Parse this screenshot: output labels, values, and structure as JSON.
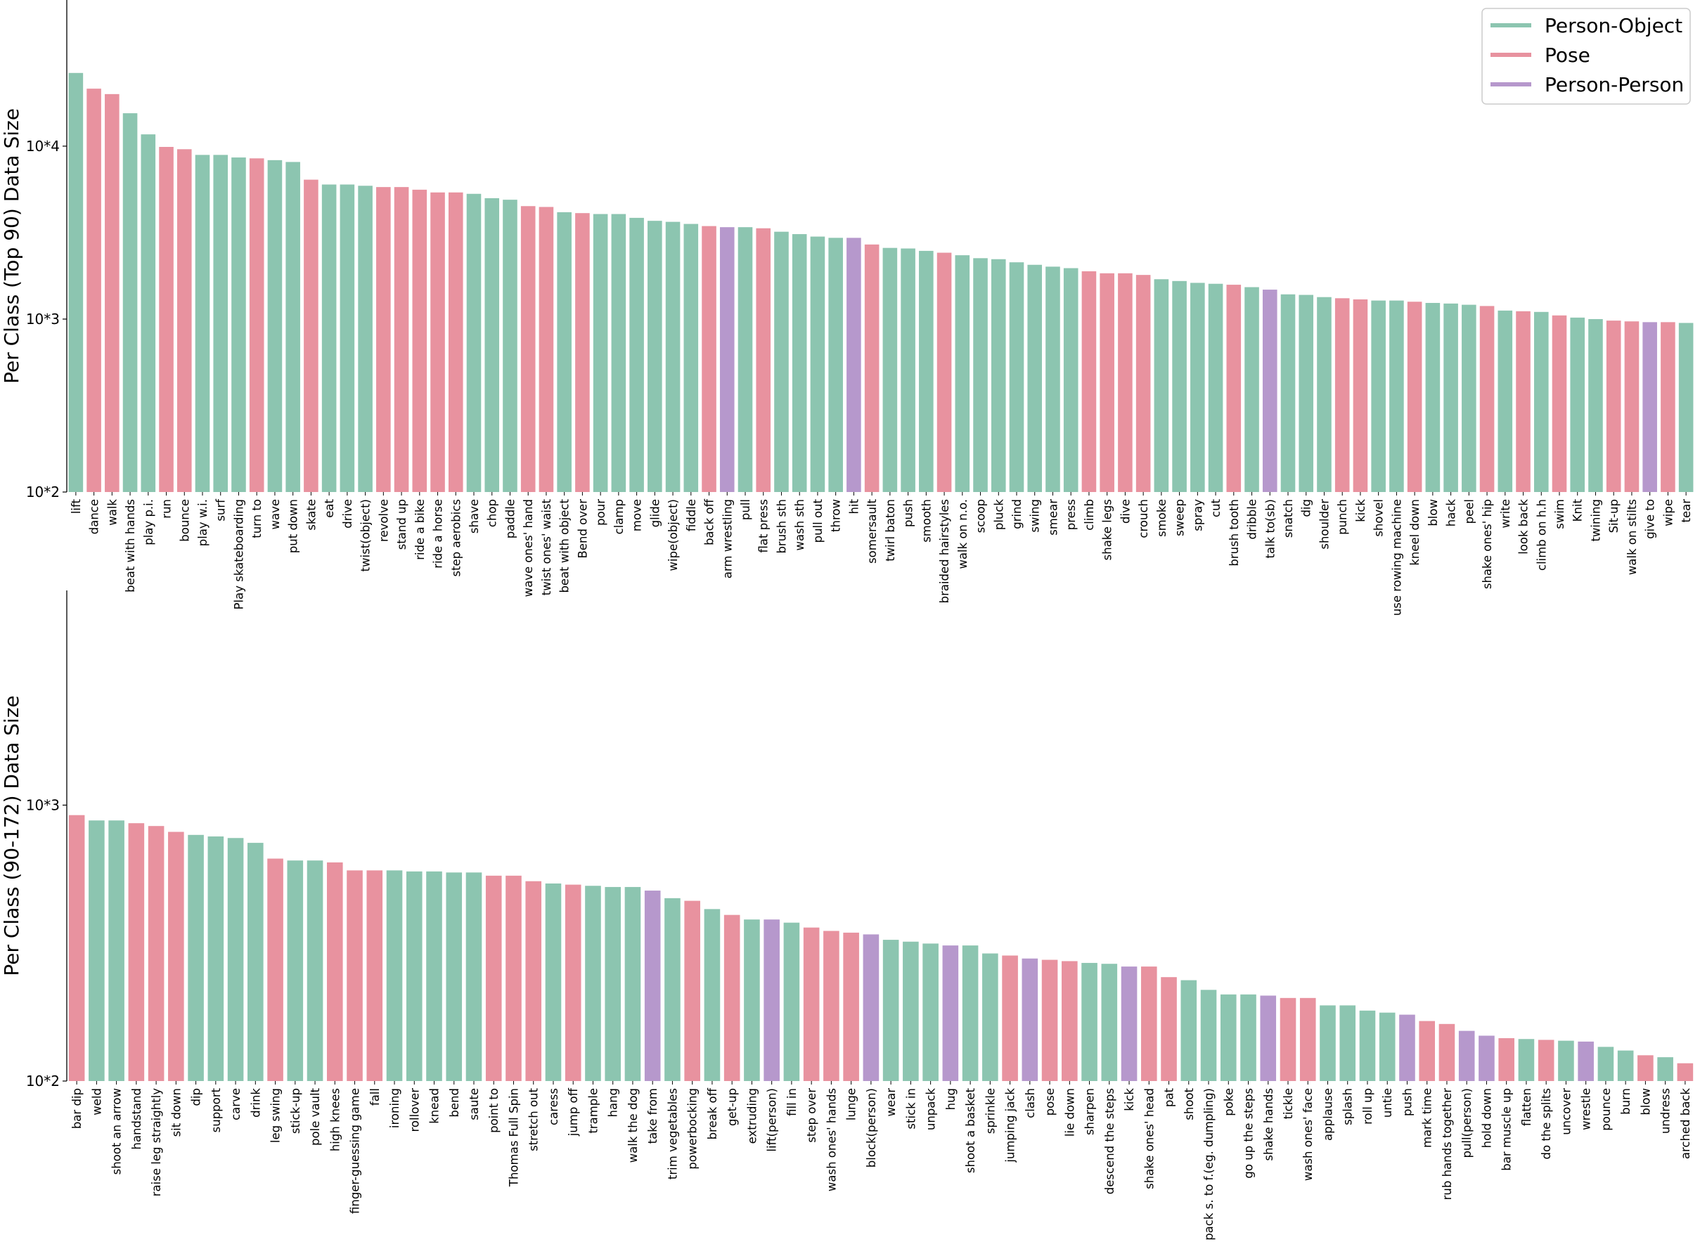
{
  "colors": {
    "Person-Object": "#8cc5b0",
    "Pose": "#e8929f",
    "Person-Person": "#b698cc"
  },
  "legend": {
    "entries": [
      "Person-Object",
      "Pose",
      "Person-Person"
    ],
    "placement": "top-right"
  },
  "chart_data": [
    {
      "type": "bar",
      "ylabel": "Per Class (Top 90) Data Size",
      "yscale": "log",
      "ylim": [
        100,
        70000
      ],
      "ytick_values": [
        100,
        1000,
        10000
      ],
      "ytick_labels": [
        "10*2",
        "10*3",
        "10*4"
      ],
      "categories": [
        "lift",
        "dance",
        "walk",
        "beat with hands",
        "play p.i.",
        "run",
        "bounce",
        "play w.i.",
        "surf",
        "Play skateboarding",
        "turn to",
        "wave",
        "put down",
        "skate",
        "eat",
        "drive",
        "twist(object)",
        "revolve",
        "stand up",
        "ride a bike",
        "ride a horse",
        "step aerobics",
        "shave",
        "chop",
        "paddle",
        "wave ones' hand",
        "twist ones' waist",
        "beat with object",
        "Bend over",
        "pour",
        "clamp",
        "move",
        "glide",
        "wipe(object)",
        "fiddle",
        "back off",
        "arm wrestling",
        "pull",
        "flat press",
        "brush sth",
        "wash sth",
        "pull out",
        "throw",
        "hit",
        "somersault",
        "twirl baton",
        "push",
        "smooth",
        "braided hairstyles",
        "walk on n.o.",
        "scoop",
        "pluck",
        "grind",
        "swing",
        "smear",
        "press",
        "climb",
        "shake legs",
        "dive",
        "crouch",
        "smoke",
        "sweep",
        "spray",
        "cut",
        "brush tooth",
        "dribble",
        "talk to(sb)",
        "snatch",
        "dig",
        "shoulder",
        "punch",
        "kick",
        "shovel",
        "use rowing machine",
        "kneel down",
        "blow",
        "hack",
        "peel",
        "shake ones' hip",
        "write",
        "look back",
        "climb on h.h",
        "swim",
        "Knit",
        "twining",
        "Sit-up",
        "walk on stilts",
        "give to",
        "wipe",
        "tear"
      ],
      "values": [
        26500,
        21500,
        20000,
        15500,
        11700,
        9900,
        9600,
        8900,
        8900,
        8600,
        8500,
        8300,
        8100,
        6400,
        6000,
        6000,
        5900,
        5800,
        5800,
        5600,
        5400,
        5400,
        5300,
        5000,
        4900,
        4500,
        4450,
        4150,
        4100,
        4050,
        4050,
        3850,
        3700,
        3650,
        3550,
        3450,
        3400,
        3400,
        3350,
        3200,
        3100,
        3000,
        2950,
        2950,
        2700,
        2580,
        2560,
        2480,
        2420,
        2340,
        2250,
        2220,
        2130,
        2060,
        2010,
        1970,
        1890,
        1840,
        1840,
        1800,
        1700,
        1660,
        1620,
        1600,
        1580,
        1530,
        1480,
        1390,
        1380,
        1340,
        1320,
        1300,
        1280,
        1280,
        1260,
        1240,
        1230,
        1210,
        1190,
        1120,
        1110,
        1100,
        1050,
        1020,
        1000,
        980,
        970,
        960,
        960,
        950
      ],
      "groups": [
        "Person-Object",
        "Pose",
        "Pose",
        "Person-Object",
        "Person-Object",
        "Pose",
        "Pose",
        "Person-Object",
        "Person-Object",
        "Person-Object",
        "Pose",
        "Person-Object",
        "Person-Object",
        "Pose",
        "Person-Object",
        "Person-Object",
        "Person-Object",
        "Pose",
        "Pose",
        "Pose",
        "Pose",
        "Pose",
        "Person-Object",
        "Person-Object",
        "Person-Object",
        "Pose",
        "Pose",
        "Person-Object",
        "Pose",
        "Person-Object",
        "Person-Object",
        "Person-Object",
        "Person-Object",
        "Person-Object",
        "Person-Object",
        "Pose",
        "Person-Person",
        "Person-Object",
        "Pose",
        "Person-Object",
        "Person-Object",
        "Person-Object",
        "Person-Object",
        "Person-Person",
        "Pose",
        "Person-Object",
        "Person-Object",
        "Person-Object",
        "Pose",
        "Person-Object",
        "Person-Object",
        "Person-Object",
        "Person-Object",
        "Person-Object",
        "Person-Object",
        "Person-Object",
        "Pose",
        "Pose",
        "Pose",
        "Pose",
        "Person-Object",
        "Person-Object",
        "Person-Object",
        "Person-Object",
        "Pose",
        "Person-Object",
        "Person-Person",
        "Person-Object",
        "Person-Object",
        "Person-Object",
        "Pose",
        "Pose",
        "Person-Object",
        "Person-Object",
        "Pose",
        "Person-Object",
        "Person-Object",
        "Person-Object",
        "Pose",
        "Person-Object",
        "Pose",
        "Person-Object",
        "Pose",
        "Person-Object",
        "Person-Object",
        "Pose",
        "Pose",
        "Person-Person",
        "Pose",
        "Person-Object"
      ]
    },
    {
      "type": "bar",
      "ylabel": "Per Class (90-172) Data Size",
      "yscale": "log",
      "ylim": [
        100,
        6000
      ],
      "ytick_values": [
        100,
        1000
      ],
      "ytick_labels": [
        "10*2",
        "10*3"
      ],
      "categories": [
        "bar dip",
        "weld",
        "shoot an arrow",
        "handstand",
        "raise leg straightly",
        "sit down",
        "dip",
        "support",
        "carve",
        "drink",
        "leg swing",
        "stick-up",
        "pole vault",
        "high knees",
        "finger-guessing game",
        "fall",
        "ironing",
        "rollover",
        "knead",
        "bend",
        "saute",
        "point to",
        "Thomas Full Spin",
        "stretch out",
        "caress",
        "jump off",
        "trample",
        "hang",
        "walk the dog",
        "take from",
        "trim vegetables",
        "powerbocking",
        "break off",
        "get-up",
        "extruding",
        "lift(person)",
        "fill in",
        "step over",
        "wash ones' hands",
        "lunge",
        "block(person)",
        "wear",
        "stick in",
        "unpack",
        "hug",
        "shoot a basket",
        "sprinkle",
        "jumping jack",
        "clash",
        "pose",
        "lie down",
        "sharpen",
        "descend the steps",
        "kick",
        "shake ones' head",
        "pat",
        "shoot",
        "pack s. to f.(eg. dumpling)",
        "poke",
        "go up the steps",
        "shake hands",
        "tickle",
        "wash ones' face",
        "applause",
        "splash",
        "roll up",
        "untie",
        "push",
        "mark time",
        "rub hands together",
        "pull(person)",
        "hold down",
        "bar muscle up",
        "flatten",
        "do the splits",
        "uncover",
        "wrestle",
        "pounce",
        "burn",
        "blow",
        "undress",
        "arched back"
      ],
      "values": [
        920,
        880,
        880,
        860,
        840,
        800,
        780,
        770,
        760,
        730,
        640,
        630,
        630,
        620,
        580,
        580,
        580,
        575,
        575,
        570,
        570,
        555,
        555,
        530,
        520,
        515,
        510,
        505,
        505,
        490,
        460,
        450,
        420,
        400,
        385,
        385,
        375,
        360,
        350,
        345,
        340,
        325,
        320,
        315,
        310,
        310,
        290,
        285,
        278,
        275,
        272,
        268,
        266,
        260,
        260,
        238,
        232,
        214,
        206,
        206,
        204,
        200,
        200,
        188,
        188,
        180,
        177,
        174,
        165,
        161,
        152,
        146,
        143,
        142,
        141,
        140,
        139,
        133,
        129,
        124,
        122,
        116
      ],
      "groups": [
        "Pose",
        "Person-Object",
        "Person-Object",
        "Pose",
        "Pose",
        "Pose",
        "Person-Object",
        "Person-Object",
        "Person-Object",
        "Person-Object",
        "Pose",
        "Person-Object",
        "Person-Object",
        "Pose",
        "Pose",
        "Pose",
        "Person-Object",
        "Person-Object",
        "Person-Object",
        "Person-Object",
        "Person-Object",
        "Pose",
        "Pose",
        "Pose",
        "Person-Object",
        "Pose",
        "Person-Object",
        "Person-Object",
        "Person-Object",
        "Person-Person",
        "Person-Object",
        "Pose",
        "Person-Object",
        "Pose",
        "Person-Object",
        "Person-Person",
        "Person-Object",
        "Pose",
        "Pose",
        "Pose",
        "Person-Person",
        "Person-Object",
        "Person-Object",
        "Person-Object",
        "Person-Person",
        "Person-Object",
        "Person-Object",
        "Pose",
        "Person-Person",
        "Pose",
        "Pose",
        "Person-Object",
        "Person-Object",
        "Person-Person",
        "Pose",
        "Pose",
        "Person-Object",
        "Person-Object",
        "Person-Object",
        "Person-Object",
        "Person-Person",
        "Pose",
        "Pose",
        "Person-Object",
        "Person-Object",
        "Person-Object",
        "Person-Object",
        "Person-Person",
        "Pose",
        "Pose",
        "Person-Person",
        "Person-Person",
        "Pose",
        "Person-Object",
        "Pose",
        "Person-Object",
        "Person-Person",
        "Person-Object",
        "Person-Object",
        "Pose",
        "Person-Object",
        "Pose"
      ]
    }
  ]
}
